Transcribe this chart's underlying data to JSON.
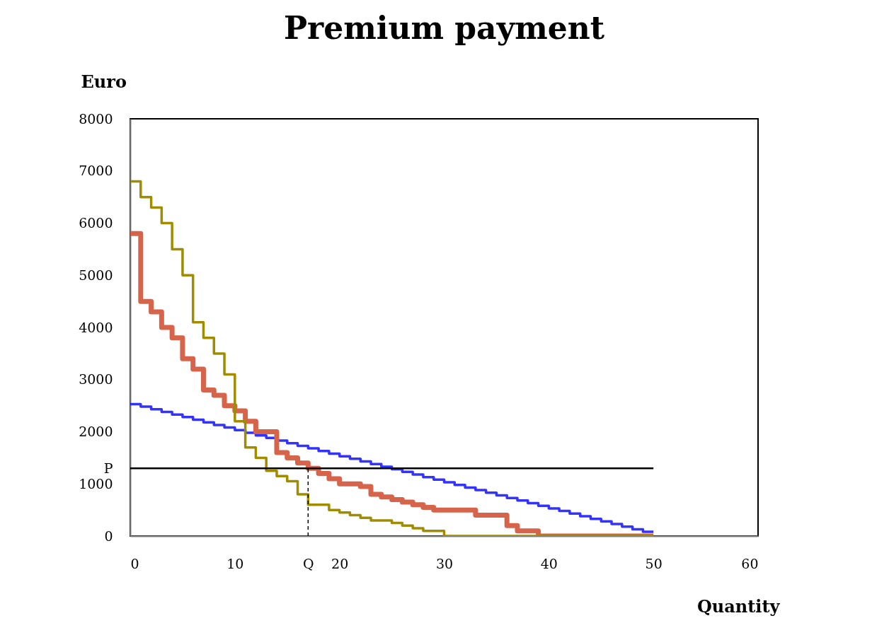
{
  "chart_data": {
    "type": "step",
    "title": "Premium payment",
    "xlabel": "Quantity",
    "ylabel": "Euro",
    "xlim": [
      0,
      60
    ],
    "ylim": [
      0,
      8000
    ],
    "xticks": [
      0,
      10,
      {
        "value": 17,
        "label": "Q"
      },
      20,
      30,
      40,
      50,
      60
    ],
    "yticks": [
      0,
      1000,
      {
        "value": 1300,
        "label": "P"
      },
      2000,
      3000,
      4000,
      5000,
      6000,
      7000,
      8000
    ],
    "grid": false,
    "marker": "none",
    "series": [
      {
        "color": "#3333ff",
        "x": [
          0,
          1,
          2,
          3,
          4,
          5,
          6,
          7,
          8,
          9,
          10,
          11,
          12,
          13,
          14,
          15,
          16,
          17,
          18,
          19,
          20,
          21,
          22,
          23,
          24,
          25,
          26,
          27,
          28,
          29,
          30,
          31,
          32,
          33,
          34,
          35,
          36,
          37,
          38,
          39,
          40,
          41,
          42,
          43,
          44,
          45,
          46,
          47,
          48,
          49,
          50
        ],
        "values": [
          2530,
          2480,
          2430,
          2380,
          2330,
          2280,
          2230,
          2180,
          2130,
          2080,
          2030,
          1980,
          1930,
          1880,
          1830,
          1780,
          1730,
          1680,
          1630,
          1580,
          1530,
          1480,
          1430,
          1380,
          1330,
          1280,
          1230,
          1180,
          1130,
          1080,
          1030,
          980,
          930,
          880,
          830,
          780,
          730,
          680,
          630,
          580,
          530,
          480,
          430,
          380,
          330,
          280,
          230,
          180,
          130,
          80,
          80
        ]
      },
      {
        "color": "#d6644a",
        "x": [
          0,
          1,
          2,
          3,
          4,
          5,
          6,
          7,
          8,
          9,
          10,
          11,
          12,
          13,
          14,
          15,
          16,
          17,
          18,
          19,
          20,
          21,
          22,
          23,
          24,
          25,
          26,
          27,
          28,
          29,
          30,
          31,
          32,
          33,
          34,
          35,
          36,
          37,
          38,
          39,
          40,
          41,
          42,
          43,
          44,
          45,
          46,
          47,
          48,
          49,
          50
        ],
        "values": [
          5800,
          4500,
          4300,
          4000,
          3800,
          3400,
          3200,
          2800,
          2700,
          2500,
          2400,
          2200,
          2000,
          2000,
          1600,
          1500,
          1400,
          1300,
          1200,
          1100,
          1000,
          1000,
          950,
          800,
          750,
          700,
          650,
          600,
          550,
          500,
          500,
          500,
          500,
          400,
          400,
          400,
          200,
          100,
          100,
          0,
          0,
          0,
          0,
          0,
          0,
          0,
          0,
          0,
          0,
          0,
          0
        ]
      },
      {
        "color": "#a08c00",
        "x": [
          0,
          1,
          2,
          3,
          4,
          5,
          6,
          7,
          8,
          9,
          10,
          11,
          12,
          13,
          14,
          15,
          16,
          17,
          18,
          19,
          20,
          21,
          22,
          23,
          24,
          25,
          26,
          27,
          28,
          29,
          30,
          31,
          32,
          33,
          34,
          35,
          36,
          37,
          38,
          39,
          40,
          41,
          42,
          43,
          44,
          45,
          46,
          47,
          48,
          49,
          50
        ],
        "values": [
          6800,
          6500,
          6300,
          6000,
          5500,
          5000,
          4100,
          3800,
          3500,
          3100,
          2200,
          1700,
          1500,
          1250,
          1150,
          1050,
          800,
          600,
          600,
          500,
          450,
          400,
          350,
          300,
          300,
          250,
          200,
          150,
          100,
          100,
          0,
          0,
          0,
          0,
          0,
          0,
          0,
          0,
          0,
          0,
          0,
          0,
          0,
          0,
          0,
          0,
          0,
          0,
          0,
          0,
          0
        ]
      },
      {
        "type": "line",
        "color": "#000000",
        "x": [
          0,
          50
        ],
        "values": [
          1300,
          1300
        ]
      },
      {
        "type": "line",
        "color": "#000000",
        "line_style": "dashed",
        "x": [
          17,
          17
        ],
        "values": [
          0,
          1300
        ]
      }
    ]
  }
}
